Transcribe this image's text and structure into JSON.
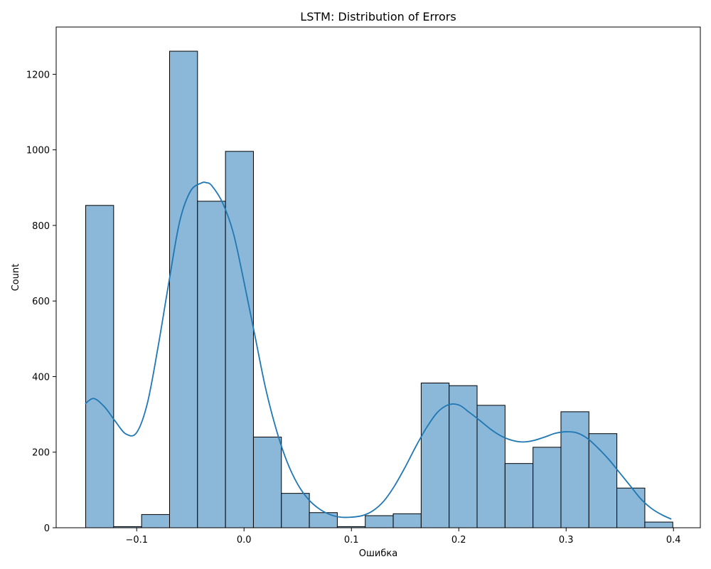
{
  "chart_data": {
    "type": "bar",
    "title": "LSTM: Distribution of Errors",
    "xlabel": "Ошибка",
    "ylabel": "Count",
    "xlim": [
      -0.175,
      0.425
    ],
    "ylim": [
      0,
      1325
    ],
    "bin_width": 0.02604,
    "bins_start": [
      -0.1475,
      -0.12146,
      -0.09542,
      -0.06938,
      -0.04334,
      -0.0173,
      0.00874,
      0.03478,
      0.06082,
      0.08686,
      0.1129,
      0.13894,
      0.16498,
      0.19102,
      0.21706,
      0.2431,
      0.26914,
      0.29518,
      0.32122,
      0.34726,
      0.3733
    ],
    "values": [
      853,
      3,
      35,
      1261,
      864,
      996,
      240,
      91,
      40,
      3,
      32,
      37,
      383,
      376,
      324,
      170,
      213,
      307,
      249,
      105,
      15
    ],
    "kde": {
      "x": [
        -0.148,
        -0.14,
        -0.13,
        -0.12,
        -0.11,
        -0.1,
        -0.09,
        -0.08,
        -0.07,
        -0.06,
        -0.05,
        -0.04,
        -0.035,
        -0.03,
        -0.02,
        -0.01,
        0.0,
        0.01,
        0.02,
        0.03,
        0.04,
        0.05,
        0.06,
        0.07,
        0.08,
        0.09,
        0.1,
        0.11,
        0.12,
        0.13,
        0.14,
        0.15,
        0.16,
        0.17,
        0.18,
        0.19,
        0.2,
        0.21,
        0.22,
        0.23,
        0.24,
        0.25,
        0.26,
        0.27,
        0.28,
        0.29,
        0.3,
        0.31,
        0.32,
        0.33,
        0.34,
        0.35,
        0.36,
        0.37,
        0.38,
        0.39,
        0.398
      ],
      "y": [
        328,
        342,
        320,
        282,
        248,
        252,
        330,
        480,
        650,
        810,
        890,
        912,
        913,
        905,
        860,
        780,
        650,
        510,
        370,
        260,
        175,
        115,
        75,
        50,
        35,
        28,
        28,
        32,
        45,
        70,
        110,
        160,
        215,
        265,
        305,
        325,
        325,
        305,
        283,
        260,
        242,
        231,
        227,
        231,
        240,
        250,
        254,
        251,
        236,
        210,
        180,
        145,
        110,
        75,
        50,
        33,
        23
      ]
    },
    "x_ticks": [
      "−0.1",
      "0.0",
      "0.1",
      "0.2",
      "0.3",
      "0.4"
    ],
    "x_tick_values": [
      -0.1,
      0.0,
      0.1,
      0.2,
      0.3,
      0.4
    ],
    "y_ticks": [
      "0",
      "200",
      "400",
      "600",
      "800",
      "1000",
      "1200"
    ],
    "y_tick_values": [
      0,
      200,
      400,
      600,
      800,
      1000,
      1200
    ],
    "colors": {
      "bar_fill": "#8bb8d9",
      "bar_edge": "#000000",
      "kde_line": "#1f77b4"
    },
    "grid": false
  }
}
